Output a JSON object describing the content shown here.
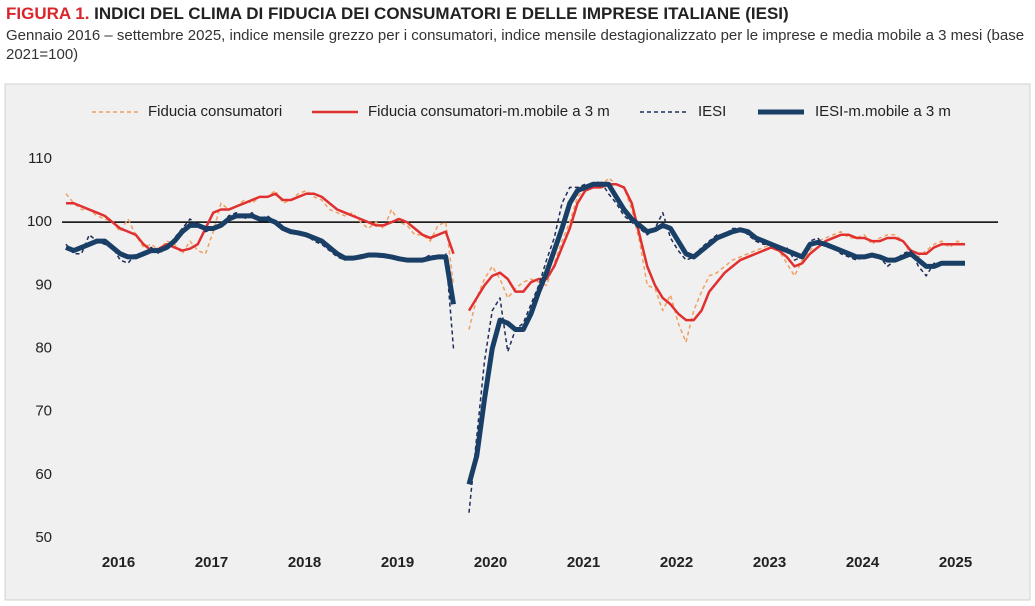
{
  "chart_data": {
    "type": "line",
    "figure_label": "FIGURA 1.",
    "title": "INDICI DEL CLIMA DI FIDUCIA DEI CONSUMATORI E DELLE IMPRESE ITALIANE (IESI)",
    "subtitle": "Gennaio 2016 – settembre 2025, indice mensile grezzo per i consumatori, indice mensile destagionalizzato per le imprese e media mobile a 3 mesi (base 2021=100)",
    "categories": [
      null,
      null,
      null,
      null,
      null,
      null,
      "2016",
      null,
      null,
      null,
      null,
      null,
      null,
      null,
      null,
      null,
      null,
      null,
      "2017",
      null,
      null,
      null,
      null,
      null,
      null,
      null,
      null,
      null,
      null,
      null,
      "2018",
      null,
      null,
      null,
      null,
      null,
      null,
      null,
      null,
      null,
      null,
      null,
      "2019",
      null,
      null,
      null,
      null,
      null,
      null,
      null,
      null,
      null,
      null,
      null,
      "2020",
      null,
      null,
      null,
      null,
      null,
      null,
      null,
      null,
      null,
      null,
      null,
      "2021",
      null,
      null,
      null,
      null,
      null,
      null,
      null,
      null,
      null,
      null,
      null,
      "2022",
      null,
      null,
      null,
      null,
      null,
      null,
      null,
      null,
      null,
      null,
      null,
      "2023",
      null,
      null,
      null,
      null,
      null,
      null,
      null,
      null,
      null,
      null,
      null,
      "2024",
      null,
      null,
      null,
      null,
      null,
      null,
      null,
      null,
      null,
      null,
      null,
      "2025",
      null,
      null
    ],
    "ylim": [
      50,
      110
    ],
    "yticks": [
      50,
      60,
      70,
      80,
      90,
      100,
      110
    ],
    "reference_line": 100,
    "series": [
      {
        "name": "Fiducia consumatori",
        "color": "#f0a060",
        "dashed": true,
        "width": 1.5,
        "values": [
          104.5,
          103,
          102,
          102,
          101,
          100.5,
          100,
          98.5,
          100.5,
          98,
          96,
          96.5,
          95.5,
          97,
          96.5,
          95,
          97,
          95.5,
          95,
          98.5,
          103,
          102,
          102.5,
          103.5,
          103,
          104,
          104,
          105,
          103,
          103.5,
          104.5,
          105,
          104,
          103.5,
          102,
          101.5,
          101,
          101.5,
          100,
          99,
          100,
          99,
          102,
          100,
          99.5,
          98,
          98,
          97,
          99.5,
          100,
          90,
          null,
          83,
          88,
          91,
          93,
          91,
          88,
          89.5,
          90.5,
          91,
          90.5,
          90,
          93.5,
          97,
          100,
          104,
          105.5,
          106,
          105.5,
          107,
          106,
          105.5,
          102,
          97,
          90,
          89.5,
          86,
          88.5,
          84,
          81,
          86,
          89,
          91.5,
          92,
          93,
          94,
          94.5,
          95,
          95.5,
          96,
          96.5,
          95.5,
          93.5,
          91.5,
          94,
          95.5,
          97,
          97.5,
          98,
          98.5,
          97.5,
          97.5,
          98,
          96.5,
          97.5,
          98,
          98,
          97,
          95,
          94.5,
          95.5,
          96.5,
          97,
          96,
          97,
          96.5
        ]
      },
      {
        "name": "Fiducia consumatori-m.mobile a 3 m",
        "color": "#e03030",
        "dashed": false,
        "width": 2.5,
        "values": [
          103,
          103,
          102.5,
          102,
          101.5,
          101,
          100,
          99,
          98.5,
          98,
          96.5,
          95.5,
          95.8,
          96.5,
          96,
          95.5,
          95.8,
          96.5,
          99,
          101.5,
          102,
          102,
          102.5,
          103,
          103.5,
          104,
          104,
          104.5,
          103.5,
          103.5,
          104,
          104.5,
          104.5,
          104,
          103,
          102,
          101.5,
          101,
          100.5,
          100,
          99.5,
          99.5,
          100,
          100.5,
          100,
          99,
          98,
          97.5,
          98,
          98.5,
          95,
          null,
          86,
          88,
          90,
          91.5,
          92,
          91,
          89,
          89,
          90.5,
          91,
          91,
          93,
          96,
          99,
          103,
          105,
          105.5,
          105.5,
          106,
          106,
          105.5,
          103,
          98,
          93,
          90,
          88,
          87,
          85.5,
          84.5,
          84.5,
          86,
          89,
          90.5,
          92,
          93,
          94,
          94.5,
          95,
          95.5,
          96,
          95.5,
          94.5,
          93,
          93.5,
          95,
          96,
          97,
          97.5,
          98,
          98,
          97.5,
          97.5,
          97,
          97,
          97.5,
          97.5,
          97,
          95.5,
          95,
          95,
          96,
          96.5,
          96.5,
          96.5,
          96.5
        ]
      },
      {
        "name": "IESI",
        "color": "#1f2d5a",
        "dashed": true,
        "width": 1.5,
        "values": [
          96.5,
          95,
          95,
          98,
          97,
          96.5,
          96,
          94,
          93.5,
          95,
          95,
          96,
          95,
          96,
          97.5,
          99,
          100.5,
          99.5,
          98.5,
          99,
          99.5,
          101,
          101.5,
          100.5,
          101.5,
          100.5,
          101,
          100,
          99,
          98.5,
          98.5,
          98,
          97,
          96.5,
          95.5,
          94.5,
          94,
          94.5,
          94.8,
          95,
          94.5,
          94.5,
          94.5,
          94,
          93.8,
          94,
          94.2,
          94.8,
          94.5,
          95,
          80,
          null,
          54,
          66,
          78,
          86,
          88,
          79.5,
          83,
          84,
          87,
          90,
          94,
          97.5,
          103,
          105.5,
          105.5,
          106,
          106,
          106.5,
          104.5,
          103,
          101,
          100,
          99,
          98,
          99,
          101.5,
          97.5,
          95.5,
          94,
          94.5,
          96,
          97,
          98,
          98,
          99,
          99,
          98,
          97,
          96.5,
          96.5,
          95.5,
          96,
          94,
          94.5,
          97,
          97.5,
          96,
          96,
          95,
          94.5,
          94,
          94.5,
          95,
          94.5,
          93,
          94,
          95,
          95.5,
          93,
          91.5,
          93.5,
          93.5,
          93.5,
          93.5,
          93.5
        ]
      },
      {
        "name": "IESI-m.mobile a 3 m",
        "color": "#1a3f66",
        "dashed": false,
        "width": 5,
        "values": [
          96,
          95.5,
          96,
          96.5,
          97,
          97,
          96,
          95,
          94.5,
          94.5,
          95,
          95.5,
          95.5,
          96,
          97,
          98.5,
          99.5,
          99.5,
          99,
          99,
          99.5,
          100.5,
          101,
          101,
          101,
          100.5,
          100.5,
          100,
          99,
          98.5,
          98.3,
          98,
          97.5,
          97,
          96,
          95,
          94.3,
          94.3,
          94.5,
          94.8,
          94.8,
          94.7,
          94.5,
          94.2,
          94,
          94,
          94,
          94.3,
          94.5,
          94.5,
          87,
          null,
          58.5,
          63,
          72,
          80,
          84.5,
          84,
          83,
          83,
          85.5,
          89,
          92,
          95.5,
          99,
          103,
          105,
          105.5,
          106,
          106,
          106,
          104,
          102,
          100.5,
          99.5,
          98.5,
          98.8,
          99.5,
          99,
          97,
          95,
          94.5,
          95.5,
          96.5,
          97.5,
          98,
          98.5,
          98.8,
          98.5,
          97.5,
          97,
          96.5,
          96,
          95.5,
          95,
          94.5,
          96.5,
          96.8,
          96.5,
          96,
          95.5,
          95,
          94.5,
          94.5,
          94.8,
          94.5,
          94,
          94,
          94.5,
          95,
          94,
          93,
          93,
          93.5,
          93.5,
          93.5,
          93.5
        ]
      }
    ]
  }
}
